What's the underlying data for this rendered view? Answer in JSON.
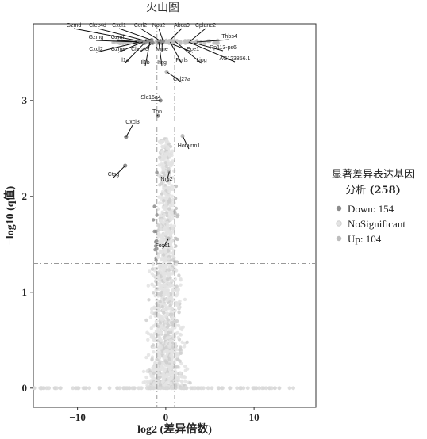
{
  "chart_data": {
    "type": "scatter",
    "title": "火山图",
    "xlabel": "log2 (差异倍数)",
    "ylabel": "−log10 (q值)",
    "xlim": [
      -15,
      17
    ],
    "ylim": [
      -0.2,
      3.8
    ],
    "x_ticks": [
      -10,
      0,
      10
    ],
    "y_ticks": [
      0,
      1,
      2,
      3
    ],
    "vlines": [
      -1,
      1
    ],
    "hline": 1.3,
    "grid": false,
    "legend": {
      "title_line1": "显著差异表达基因",
      "title_line2_prefix": "分析 ",
      "title_line2_bold": "(258)",
      "position": "right",
      "entries": [
        {
          "label": "Down: 154",
          "color": "#8c8c8c"
        },
        {
          "label": "NoSignificant",
          "color": "#e3e3e3"
        },
        {
          "label": "Up: 104",
          "color": "#bdbdbd"
        }
      ]
    },
    "annotated_genes": [
      {
        "label": "Gzmd",
        "x": -3.0,
        "y": 3.62
      },
      {
        "label": "Clec4d",
        "x": -2.2,
        "y": 3.62
      },
      {
        "label": "Cxcl1",
        "x": -1.6,
        "y": 3.63
      },
      {
        "label": "Ccrl2",
        "x": -0.6,
        "y": 3.62
      },
      {
        "label": "Nos2",
        "x": -0.3,
        "y": 3.62
      },
      {
        "label": "Abca9",
        "x": 0.4,
        "y": 3.62
      },
      {
        "label": "Cplane2",
        "x": 2.8,
        "y": 3.62
      },
      {
        "label": "Gzmg",
        "x": -3.2,
        "y": 3.61
      },
      {
        "label": "Gzmf",
        "x": -2.5,
        "y": 3.61
      },
      {
        "label": "Thbs4",
        "x": 3.5,
        "y": 3.61
      },
      {
        "label": "Rp113-ps6",
        "x": 3.2,
        "y": 3.6
      },
      {
        "label": "Cxcl2",
        "x": -3.0,
        "y": 3.61
      },
      {
        "label": "Gzme",
        "x": -2.6,
        "y": 3.61
      },
      {
        "label": "Clec4e",
        "x": -1.5,
        "y": 3.6
      },
      {
        "label": "Mme",
        "x": -0.4,
        "y": 3.6
      },
      {
        "label": "Ece1",
        "x": 0.4,
        "y": 3.6
      },
      {
        "label": "Il1a",
        "x": -2.4,
        "y": 3.6
      },
      {
        "label": "Il1b",
        "x": -1.8,
        "y": 3.61
      },
      {
        "label": "Ifng",
        "x": -0.8,
        "y": 3.61
      },
      {
        "label": "Fcrls",
        "x": 0.5,
        "y": 3.61
      },
      {
        "label": "Lipg",
        "x": 1.0,
        "y": 3.62
      },
      {
        "label": "AC123856.1",
        "x": 2.6,
        "y": 3.61
      },
      {
        "label": "Ccl27a",
        "x": 0.1,
        "y": 3.3
      },
      {
        "label": "Slc16a4",
        "x": -0.6,
        "y": 3.0
      },
      {
        "label": "Tnn",
        "x": -0.9,
        "y": 2.84
      },
      {
        "label": "Cxcl3",
        "x": -4.5,
        "y": 2.62
      },
      {
        "label": "Hotairm1",
        "x": 1.9,
        "y": 2.63
      },
      {
        "label": "Ctsg",
        "x": -4.6,
        "y": 2.32
      },
      {
        "label": "Nrg2",
        "x": 0.4,
        "y": 2.26
      },
      {
        "label": "Foxs1",
        "x": 0.3,
        "y": 1.56
      }
    ]
  }
}
